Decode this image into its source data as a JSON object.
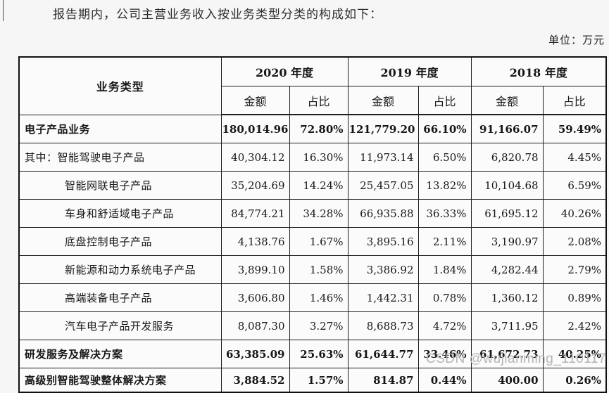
{
  "page": {
    "intro": "报告期内，公司主营业务收入按业务类型分类的构成如下：",
    "unit_label": "单位：万元",
    "watermark": "CSDN @wujianming_110117"
  },
  "table": {
    "header": {
      "col_business_type": "业务类型",
      "year_groups": [
        "2020 年度",
        "2019 年度",
        "2018 年度"
      ],
      "sub_amount": "金额",
      "sub_ratio": "占比"
    },
    "rows": [
      {
        "label": "电子产品业务",
        "bold": true,
        "indent": 0,
        "values": [
          "180,014.96",
          "72.80%",
          "121,779.20",
          "66.10%",
          "91,166.07",
          "59.49%"
        ]
      },
      {
        "label": "其中：智能驾驶电子产品",
        "bold": false,
        "indent": 0,
        "values": [
          "40,304.12",
          "16.30%",
          "11,973.14",
          "6.50%",
          "6,820.78",
          "4.45%"
        ]
      },
      {
        "label": "智能网联电子产品",
        "bold": false,
        "indent": 1,
        "values": [
          "35,204.69",
          "14.24%",
          "25,457.05",
          "13.82%",
          "10,104.68",
          "6.59%"
        ]
      },
      {
        "label": "车身和舒适域电子产品",
        "bold": false,
        "indent": 1,
        "values": [
          "84,774.21",
          "34.28%",
          "66,935.88",
          "36.33%",
          "61,695.12",
          "40.26%"
        ]
      },
      {
        "label": "底盘控制电子产品",
        "bold": false,
        "indent": 1,
        "values": [
          "4,138.76",
          "1.67%",
          "3,895.16",
          "2.11%",
          "3,190.97",
          "2.08%"
        ]
      },
      {
        "label": "新能源和动力系统电子产品",
        "bold": false,
        "indent": 1,
        "values": [
          "3,899.10",
          "1.58%",
          "3,386.92",
          "1.84%",
          "4,282.44",
          "2.79%"
        ]
      },
      {
        "label": "高端装备电子产品",
        "bold": false,
        "indent": 1,
        "values": [
          "3,606.80",
          "1.46%",
          "1,442.31",
          "0.78%",
          "1,360.12",
          "0.89%"
        ]
      },
      {
        "label": "汽车电子产品开发服务",
        "bold": false,
        "indent": 1,
        "values": [
          "8,087.30",
          "3.27%",
          "8,688.73",
          "4.72%",
          "3,711.95",
          "2.42%"
        ]
      },
      {
        "label": "研发服务及解决方案",
        "bold": true,
        "indent": 0,
        "values": [
          "63,385.09",
          "25.63%",
          "61,644.77",
          "33.46%",
          "61,672.73",
          "40.25%"
        ]
      },
      {
        "label": "高级别智能驾驶整体解决方案",
        "bold": true,
        "indent": 0,
        "values": [
          "3,884.52",
          "1.57%",
          "814.87",
          "0.44%",
          "400.00",
          "0.26%"
        ]
      }
    ]
  }
}
